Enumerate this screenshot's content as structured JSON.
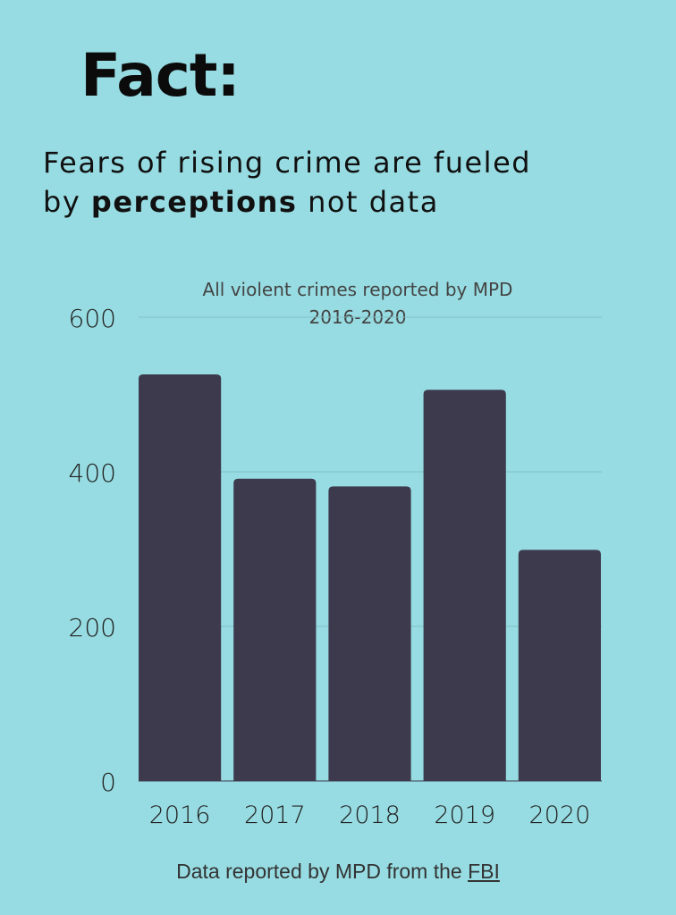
{
  "header": {
    "fact_label": "Fact:"
  },
  "headline": {
    "part1": "Fears of rising crime are fueled",
    "part2_prefix": "by ",
    "emphasis": "perceptions",
    "part2_suffix": " not data"
  },
  "chart_data": {
    "type": "bar",
    "title": "All violent crimes reported by MPD",
    "subtitle": "2016-2020",
    "categories": [
      "2016",
      "2017",
      "2018",
      "2019",
      "2020"
    ],
    "values": [
      526,
      391,
      381,
      506,
      299
    ],
    "ylim": [
      0,
      600
    ],
    "yticks": [
      0,
      200,
      400,
      600
    ],
    "grid": true,
    "bar_color": "#3d3a4d",
    "background": "#97dce2"
  },
  "footer": {
    "source_prefix": "Data reported by MPD from the ",
    "source_link": "FBI "
  }
}
